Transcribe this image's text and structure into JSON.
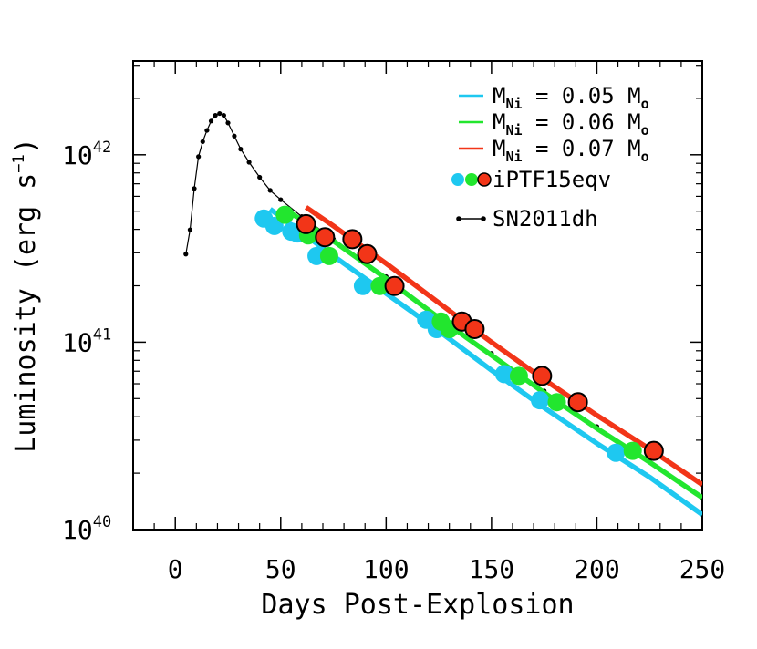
{
  "chart_data": {
    "type": "scatter",
    "xlabel": "Days Post-Explosion",
    "ylabel_parts": [
      "Luminosity (erg s",
      "−1",
      ")"
    ],
    "xlim": [
      -20,
      250
    ],
    "ylim_log10": [
      40.0,
      42.5
    ],
    "y_scale": "log",
    "x_ticks": [
      0,
      50,
      100,
      150,
      200,
      250
    ],
    "y_ticks": [
      {
        "base": "10",
        "exp": "42",
        "log10": 42
      },
      {
        "base": "10",
        "exp": "41",
        "log10": 41
      },
      {
        "base": "10",
        "exp": "40",
        "log10": 40
      }
    ],
    "legend": {
      "position": "top-right",
      "entries": [
        {
          "prefix": "M",
          "sub": "Ni",
          "text": " = 0.05 M",
          "unit_sub": "o",
          "color": "#1ec8f0",
          "kind": "line"
        },
        {
          "prefix": "M",
          "sub": "Ni",
          "text": " = 0.06 M",
          "unit_sub": "o",
          "color": "#22e62e",
          "kind": "line"
        },
        {
          "prefix": "M",
          "sub": "Ni",
          "text": " = 0.07 M",
          "unit_sub": "o",
          "color": "#f23518",
          "kind": "line"
        },
        {
          "label": "iPTF15eqv",
          "kind": "markers"
        },
        {
          "label": "SN2011dh",
          "kind": "line-dot"
        }
      ]
    },
    "colors": {
      "blue": "#1ec8f0",
      "green": "#22e62e",
      "red": "#f23518",
      "black": "#000000"
    },
    "series": [
      {
        "name": "M_Ni = 0.05 M_o",
        "kind": "model",
        "color": "#1ec8f0",
        "points": [
          [
            45,
            41.71
          ],
          [
            75,
            41.46
          ],
          [
            100,
            41.26
          ],
          [
            125,
            41.06
          ],
          [
            150,
            40.85
          ],
          [
            175,
            40.65
          ],
          [
            200,
            40.46
          ],
          [
            225,
            40.28
          ],
          [
            250,
            40.08
          ]
        ]
      },
      {
        "name": "M_Ni = 0.06 M_o",
        "kind": "model",
        "color": "#22e62e",
        "points": [
          [
            52,
            41.71
          ],
          [
            75,
            41.54
          ],
          [
            100,
            41.34
          ],
          [
            125,
            41.13
          ],
          [
            150,
            40.93
          ],
          [
            175,
            40.73
          ],
          [
            200,
            40.54
          ],
          [
            225,
            40.36
          ],
          [
            250,
            40.17
          ]
        ]
      },
      {
        "name": "M_Ni = 0.07 M_o",
        "kind": "model",
        "color": "#f23518",
        "points": [
          [
            62,
            41.72
          ],
          [
            75,
            41.62
          ],
          [
            100,
            41.42
          ],
          [
            125,
            41.21
          ],
          [
            150,
            41.0
          ],
          [
            175,
            40.8
          ],
          [
            200,
            40.61
          ],
          [
            225,
            40.43
          ],
          [
            250,
            40.24
          ]
        ]
      },
      {
        "name": "iPTF15eqv",
        "kind": "observed",
        "groups": [
          {
            "color": "#1ec8f0",
            "points": [
              [
                42,
                41.66
              ],
              [
                47,
                41.62
              ],
              [
                55,
                41.59
              ],
              [
                58,
                41.58
              ],
              [
                67,
                41.46
              ],
              [
                89,
                41.3
              ],
              [
                119,
                41.12
              ],
              [
                124,
                41.07
              ],
              [
                156,
                40.83
              ],
              [
                173,
                40.69
              ],
              [
                209,
                40.41
              ]
            ]
          },
          {
            "color": "#22e62e",
            "points": [
              [
                52,
                41.68
              ],
              [
                63,
                41.57
              ],
              [
                73,
                41.46
              ],
              [
                97,
                41.3
              ],
              [
                126,
                41.11
              ],
              [
                130,
                41.07
              ],
              [
                163,
                40.82
              ],
              [
                181,
                40.68
              ],
              [
                217,
                40.42
              ]
            ]
          },
          {
            "color": "#f23518",
            "points": [
              [
                62,
                41.63
              ],
              [
                71,
                41.56
              ],
              [
                84,
                41.55
              ],
              [
                91,
                41.47
              ],
              [
                104,
                41.3
              ],
              [
                136,
                41.11
              ],
              [
                142,
                41.07
              ],
              [
                174,
                40.82
              ],
              [
                191,
                40.68
              ],
              [
                227,
                40.42
              ]
            ]
          }
        ]
      },
      {
        "name": "SN2011dh",
        "kind": "reference",
        "color": "#000000",
        "points": [
          [
            5,
            41.47
          ],
          [
            7,
            41.6
          ],
          [
            9,
            41.82
          ],
          [
            11,
            41.99
          ],
          [
            13,
            42.07
          ],
          [
            15,
            42.13
          ],
          [
            17,
            42.18
          ],
          [
            19,
            42.21
          ],
          [
            21,
            42.22
          ],
          [
            23,
            42.21
          ],
          [
            25,
            42.17
          ],
          [
            28,
            42.1
          ],
          [
            31,
            42.03
          ],
          [
            35,
            41.96
          ],
          [
            40,
            41.88
          ],
          [
            45,
            41.81
          ],
          [
            50,
            41.76
          ],
          [
            60,
            41.67
          ],
          [
            75,
            41.55
          ],
          [
            100,
            41.35
          ],
          [
            125,
            41.14
          ],
          [
            150,
            40.94
          ],
          [
            175,
            40.74
          ],
          [
            200,
            40.55
          ],
          [
            225,
            40.36
          ],
          [
            250,
            40.17
          ]
        ]
      }
    ]
  }
}
